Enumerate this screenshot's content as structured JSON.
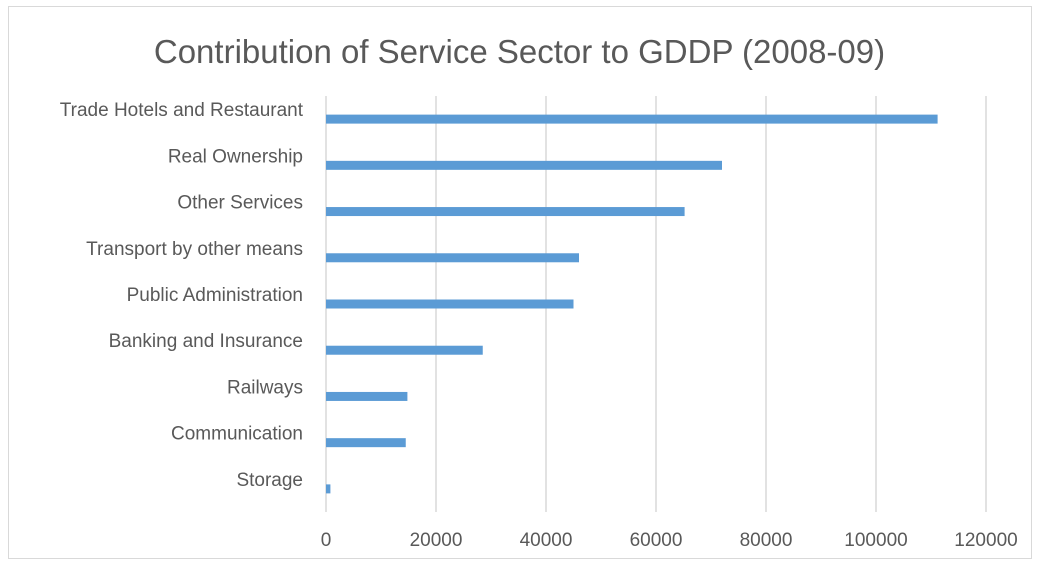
{
  "chart_data": {
    "type": "bar",
    "orientation": "horizontal",
    "title": "Contribution of Service Sector to GDDP (2008-09)",
    "xlabel": "",
    "ylabel": "",
    "xlim": [
      0,
      120000
    ],
    "x_ticks": [
      0,
      20000,
      40000,
      60000,
      80000,
      100000,
      120000
    ],
    "grid": "vertical",
    "legend": "none",
    "bar_color": "#5b9bd5",
    "gridline_color": "#d9d9d9",
    "text_color": "#595959",
    "categories": [
      "Trade Hotels and Restaurant",
      "Real Ownership ",
      "Other Services",
      "Transport by other means",
      "Public Administration",
      "Banking and Insurance",
      "Railways",
      "Communication",
      "Storage"
    ],
    "values": [
      111200,
      72000,
      65200,
      46000,
      45000,
      28500,
      14800,
      14500,
      800
    ]
  }
}
